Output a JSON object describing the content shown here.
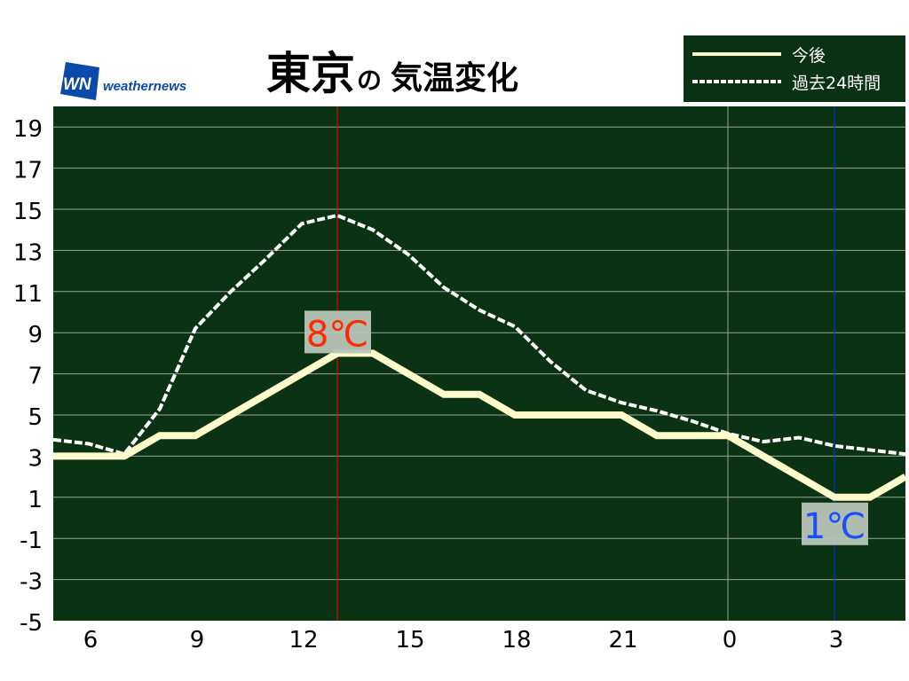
{
  "header": {
    "title_city": "東京",
    "title_particle": "の",
    "title_rest": "気温変化",
    "logo_mark": "WN",
    "logo_text": "weathernews"
  },
  "colors": {
    "background": "#0b3213",
    "future_line": "#fffccc",
    "past_line": "#ffffff",
    "max_marker": "#ff0000",
    "min_marker": "#0033ff",
    "max_label": "#ff2a00",
    "min_label": "#1a4fff",
    "label_box": "#b8c4b8",
    "logo_blue": "#0b4aa8"
  },
  "chart_data": {
    "type": "line",
    "title": "東京の気温変化",
    "xlabel": "",
    "ylabel": "",
    "x_hours": [
      5,
      6,
      7,
      8,
      9,
      10,
      11,
      12,
      13,
      14,
      15,
      16,
      17,
      18,
      19,
      20,
      21,
      22,
      23,
      0,
      1,
      2,
      3,
      4,
      5
    ],
    "x_tick_labels": [
      "6",
      "9",
      "12",
      "15",
      "18",
      "21",
      "0",
      "3"
    ],
    "y_tick_labels": [
      "19",
      "17",
      "15",
      "13",
      "11",
      "9",
      "7",
      "5",
      "3",
      "1",
      "-1",
      "-3",
      "-5"
    ],
    "ylim": [
      -5,
      20
    ],
    "grid": true,
    "legend_position": "top-right",
    "series": [
      {
        "name": "今後",
        "style": "solid",
        "values": [
          3,
          3,
          3,
          4,
          4,
          5,
          6,
          7,
          8,
          8,
          7,
          6,
          6,
          5,
          5,
          5,
          5,
          4,
          4,
          4,
          3,
          2,
          1,
          1,
          2
        ]
      },
      {
        "name": "過去24時間",
        "style": "dashed",
        "values": [
          3.8,
          3.6,
          3.1,
          5.3,
          9.2,
          11.0,
          12.6,
          14.3,
          14.7,
          14.0,
          12.8,
          11.2,
          10.1,
          9.3,
          7.6,
          6.2,
          5.6,
          5.2,
          4.7,
          4.1,
          3.7,
          3.9,
          3.5,
          3.3,
          3.1
        ]
      }
    ],
    "annotations": [
      {
        "text": "8℃",
        "type": "max",
        "hour": 13,
        "value": 8
      },
      {
        "text": "1℃",
        "type": "min",
        "hour": 3,
        "value": 1
      }
    ]
  }
}
